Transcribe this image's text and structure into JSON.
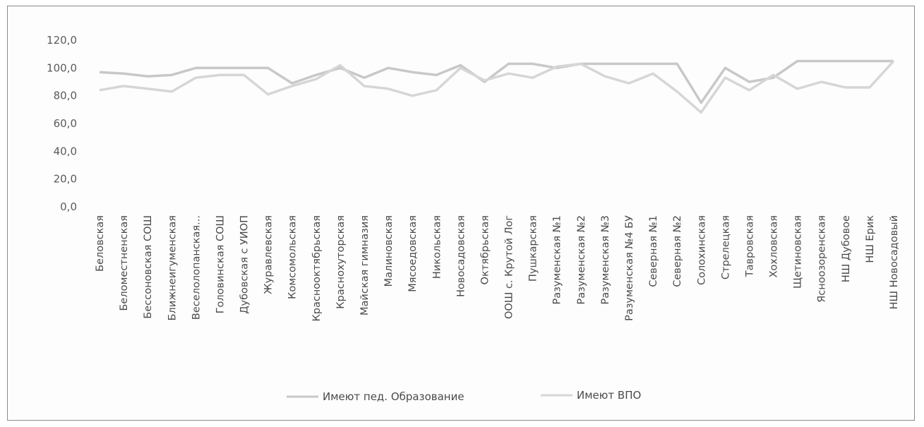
{
  "chart_data": {
    "type": "line",
    "title": "",
    "xlabel": "",
    "ylabel": "",
    "ylim": [
      0,
      120
    ],
    "yticks": [
      "0,0",
      "20,0",
      "40,0",
      "60,0",
      "80,0",
      "100,0",
      "120,0"
    ],
    "yticks_values": [
      0,
      20,
      40,
      60,
      80,
      100,
      120
    ],
    "grid": false,
    "legend_position": "bottom",
    "categories": [
      "Беловская",
      "Беломестненская",
      "Бессоновская СОШ",
      "Ближнеигуменская",
      "Веселолопанская...",
      "Головинская СОШ",
      "Дубовская с УИОП",
      "Журавлевская",
      "Комсомольская",
      "Краснооктябрьская",
      "Краснохуторская",
      "Майская гимназия",
      "Малиновская",
      "Мясоедовская",
      "Никольская",
      "Новосадовская",
      "Октябрьская",
      "ООШ с. Крутой Лог",
      "Пушкарская",
      "Разуменская №1",
      "Разуменская №2",
      "Разуменская №3",
      "Разуменская №4 БУ",
      "Северная №1",
      "Северная №2",
      "Солохинская",
      "Стрелецкая",
      "Тавровская",
      "Хохловская",
      "Щетиновская",
      "Ясноозоренская",
      "НШ Дубовое",
      "НШ Ерик",
      "НШ Новосадовый"
    ],
    "series": [
      {
        "name": "Имеют пед. Образование",
        "color": "#c8c8c8",
        "values": [
          97,
          96,
          94,
          95,
          100,
          100,
          100,
          100,
          89,
          95,
          100,
          93,
          100,
          97,
          95,
          102,
          90,
          103,
          103,
          100,
          103,
          103,
          103,
          103,
          103,
          75,
          100,
          90,
          93,
          105,
          105,
          105,
          105,
          105
        ]
      },
      {
        "name": "Имеют ВПО",
        "color": "#d6d6d6",
        "values": [
          84,
          87,
          85,
          83,
          93,
          95,
          95,
          81,
          87,
          92,
          102,
          87,
          85,
          80,
          84,
          100,
          91,
          96,
          93,
          101,
          103,
          94,
          89,
          96,
          83,
          68,
          93,
          84,
          95,
          85,
          90,
          86,
          86,
          105
        ]
      }
    ]
  }
}
